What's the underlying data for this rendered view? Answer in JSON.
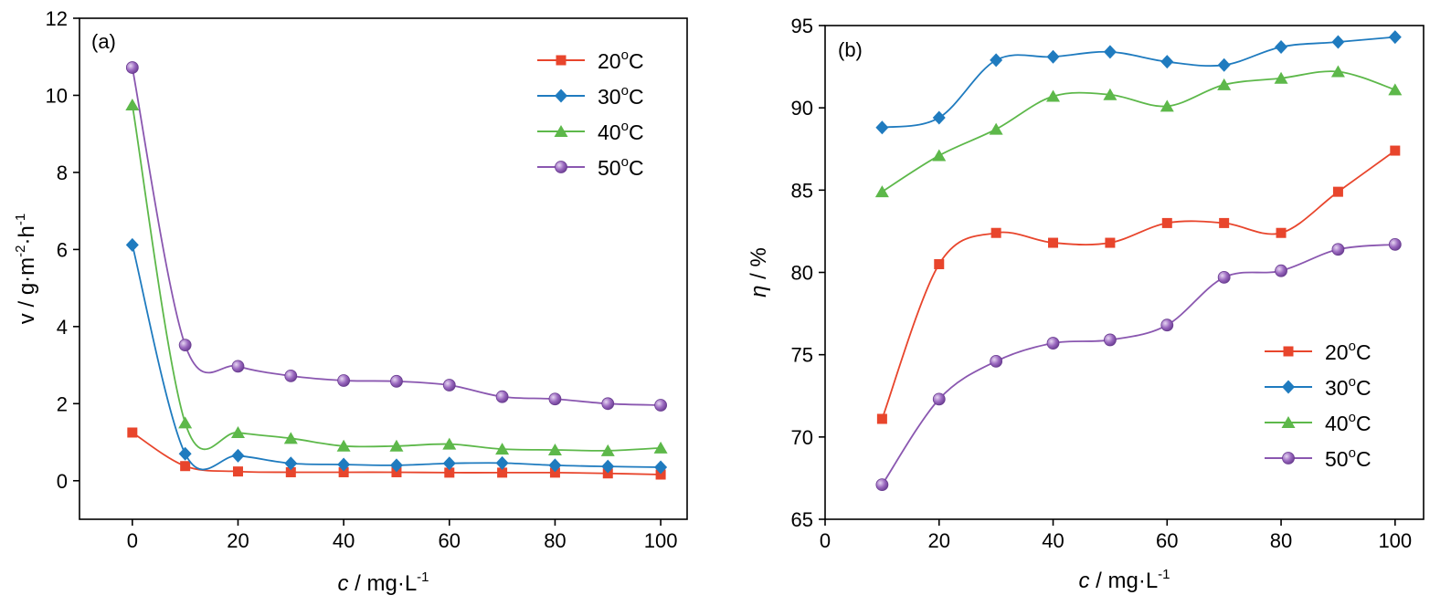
{
  "colors": {
    "s20": "#e8452c",
    "s30": "#1f7bbf",
    "s40": "#5db84a",
    "s50": "#8a57b0"
  },
  "chart_data": [
    {
      "type": "line",
      "panel_label": "(a)",
      "xlabel_italic": "c",
      "xlabel_rest": " / mg·L",
      "xlabel_sup": "-1",
      "ylabel_base": "v / g·m",
      "ylabel_sup1": "-2",
      "ylabel_mid": "·h",
      "ylabel_sup2": "-1",
      "xlim": [
        -10,
        105
      ],
      "ylim": [
        -1,
        12
      ],
      "xticks": [
        "0",
        "20",
        "40",
        "60",
        "80",
        "100"
      ],
      "yticks": [
        "0",
        "2",
        "4",
        "6",
        "8",
        "10",
        "12"
      ],
      "legend_position": "top-right",
      "x": [
        0,
        10,
        20,
        30,
        40,
        50,
        60,
        70,
        80,
        90,
        100
      ],
      "series": [
        {
          "name": "20",
          "name_sup": "o",
          "name_unit": "C",
          "marker": "square",
          "color_key": "s20",
          "values": [
            1.25,
            0.38,
            0.24,
            0.22,
            0.22,
            0.22,
            0.21,
            0.21,
            0.21,
            0.19,
            0.16
          ]
        },
        {
          "name": "30",
          "name_sup": "o",
          "name_unit": "C",
          "marker": "diamond",
          "color_key": "s30",
          "values": [
            6.12,
            0.7,
            0.65,
            0.45,
            0.42,
            0.4,
            0.45,
            0.46,
            0.4,
            0.37,
            0.35
          ]
        },
        {
          "name": "40",
          "name_sup": "o",
          "name_unit": "C",
          "marker": "triangle",
          "color_key": "s40",
          "values": [
            9.75,
            1.5,
            1.25,
            1.1,
            0.9,
            0.9,
            0.95,
            0.82,
            0.8,
            0.78,
            0.85
          ]
        },
        {
          "name": "50",
          "name_sup": "o",
          "name_unit": "C",
          "marker": "circle",
          "color_key": "s50",
          "values": [
            10.72,
            3.52,
            2.97,
            2.72,
            2.6,
            2.58,
            2.48,
            2.18,
            2.12,
            2.0,
            1.96
          ]
        }
      ]
    },
    {
      "type": "line",
      "panel_label": "(b)",
      "xlabel_italic": "c",
      "xlabel_rest": " / mg·L",
      "xlabel_sup": "-1",
      "ylabel_italic": "η",
      "ylabel_rest": " / %",
      "xlim": [
        0,
        105
      ],
      "ylim": [
        65,
        95
      ],
      "xticks": [
        "0",
        "20",
        "40",
        "60",
        "80",
        "100"
      ],
      "yticks": [
        "65",
        "70",
        "75",
        "80",
        "85",
        "90",
        "95"
      ],
      "legend_position": "bottom-right",
      "x": [
        10,
        20,
        30,
        40,
        50,
        60,
        70,
        80,
        90,
        100
      ],
      "series": [
        {
          "name": "20",
          "name_sup": "o",
          "name_unit": "C",
          "marker": "square",
          "color_key": "s20",
          "values": [
            71.1,
            80.5,
            82.4,
            81.8,
            81.8,
            83.0,
            83.0,
            82.4,
            84.9,
            87.4
          ]
        },
        {
          "name": "30",
          "name_sup": "o",
          "name_unit": "C",
          "marker": "diamond",
          "color_key": "s30",
          "values": [
            88.8,
            89.4,
            92.9,
            93.1,
            93.4,
            92.8,
            92.6,
            93.7,
            94.0,
            94.3
          ]
        },
        {
          "name": "40",
          "name_sup": "o",
          "name_unit": "C",
          "marker": "triangle",
          "color_key": "s40",
          "values": [
            84.9,
            87.1,
            88.7,
            90.7,
            90.8,
            90.1,
            91.4,
            91.8,
            92.2,
            91.1
          ]
        },
        {
          "name": "50",
          "name_sup": "o",
          "name_unit": "C",
          "marker": "circle",
          "color_key": "s50",
          "values": [
            67.1,
            72.3,
            74.6,
            75.7,
            75.9,
            76.8,
            79.7,
            80.1,
            81.4,
            81.7
          ]
        }
      ]
    }
  ]
}
